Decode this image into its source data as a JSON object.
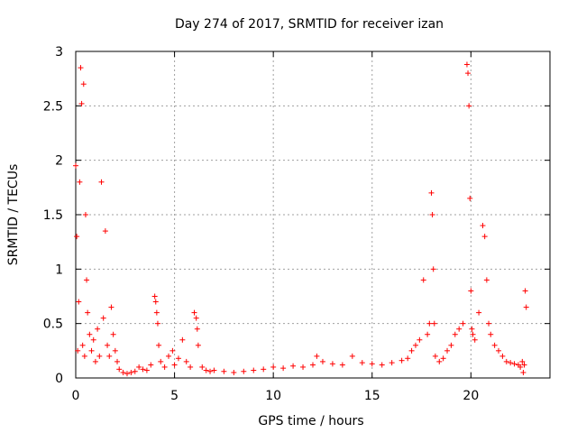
{
  "chart_data": {
    "type": "scatter",
    "title": "Day 274 of 2017, SRMTID for receiver izan",
    "xlabel": "GPS time / hours",
    "ylabel": "SRMTID / TECUs",
    "xlim": [
      0,
      24
    ],
    "ylim": [
      0,
      3
    ],
    "xticks": [
      0,
      5,
      10,
      15,
      20
    ],
    "yticks": [
      0,
      0.5,
      1,
      1.5,
      2,
      2.5,
      3
    ],
    "xtick_labels": [
      "0",
      "5",
      "10",
      "15",
      "20"
    ],
    "ytick_labels": [
      "0",
      "0.5",
      "1",
      "1.5",
      "2",
      "2.5",
      "3"
    ],
    "grid": true,
    "marker": "+",
    "marker_color": "#ff0000",
    "series": [
      {
        "name": "SRMTID",
        "x": [
          0.0,
          0.05,
          0.1,
          0.15,
          0.2,
          0.25,
          0.3,
          0.35,
          0.4,
          0.45,
          0.5,
          0.55,
          0.6,
          0.7,
          0.8,
          0.9,
          1.0,
          1.1,
          1.2,
          1.3,
          1.4,
          1.5,
          1.6,
          1.7,
          1.8,
          1.9,
          2.0,
          2.1,
          2.2,
          2.4,
          2.6,
          2.8,
          3.0,
          3.2,
          3.4,
          3.6,
          3.8,
          4.0,
          4.05,
          4.1,
          4.15,
          4.2,
          4.3,
          4.5,
          4.7,
          4.9,
          5.0,
          5.2,
          5.4,
          5.6,
          5.8,
          6.0,
          6.1,
          6.15,
          6.2,
          6.4,
          6.6,
          6.8,
          7.0,
          7.5,
          8.0,
          8.5,
          9.0,
          9.5,
          10.0,
          10.5,
          11.0,
          11.5,
          12.0,
          12.2,
          12.5,
          13.0,
          13.5,
          14.0,
          14.5,
          15.0,
          15.5,
          16.0,
          16.5,
          16.8,
          17.0,
          17.2,
          17.4,
          17.6,
          17.8,
          17.9,
          18.0,
          18.05,
          18.1,
          18.15,
          18.2,
          18.4,
          18.6,
          18.8,
          19.0,
          19.2,
          19.4,
          19.6,
          19.8,
          19.85,
          19.9,
          19.95,
          20.0,
          20.05,
          20.1,
          20.2,
          20.4,
          20.6,
          20.7,
          20.8,
          20.9,
          21.0,
          21.2,
          21.4,
          21.6,
          21.8,
          22.0,
          22.2,
          22.4,
          22.5,
          22.6,
          22.65,
          22.7,
          22.75,
          22.8
        ],
        "y": [
          1.95,
          1.3,
          0.25,
          0.7,
          1.8,
          2.85,
          2.52,
          0.3,
          2.7,
          0.2,
          1.5,
          0.9,
          0.6,
          0.4,
          0.25,
          0.35,
          0.15,
          0.45,
          0.2,
          1.8,
          0.55,
          1.35,
          0.3,
          0.2,
          0.65,
          0.4,
          0.25,
          0.15,
          0.08,
          0.05,
          0.04,
          0.05,
          0.06,
          0.1,
          0.08,
          0.07,
          0.12,
          0.75,
          0.7,
          0.6,
          0.5,
          0.3,
          0.15,
          0.1,
          0.2,
          0.25,
          0.12,
          0.18,
          0.35,
          0.15,
          0.1,
          0.6,
          0.55,
          0.45,
          0.3,
          0.1,
          0.07,
          0.06,
          0.07,
          0.06,
          0.05,
          0.06,
          0.07,
          0.08,
          0.1,
          0.09,
          0.11,
          0.1,
          0.12,
          0.2,
          0.15,
          0.13,
          0.12,
          0.2,
          0.14,
          0.13,
          0.12,
          0.14,
          0.16,
          0.18,
          0.25,
          0.3,
          0.35,
          0.9,
          0.4,
          0.5,
          1.7,
          1.5,
          1.0,
          0.5,
          0.2,
          0.15,
          0.18,
          0.25,
          0.3,
          0.4,
          0.45,
          0.5,
          2.88,
          2.8,
          2.5,
          1.65,
          0.8,
          0.45,
          0.4,
          0.35,
          0.6,
          1.4,
          1.3,
          0.9,
          0.5,
          0.4,
          0.3,
          0.25,
          0.2,
          0.15,
          0.14,
          0.13,
          0.12,
          0.1,
          0.15,
          0.05,
          0.12,
          0.8,
          0.65
        ]
      }
    ]
  }
}
